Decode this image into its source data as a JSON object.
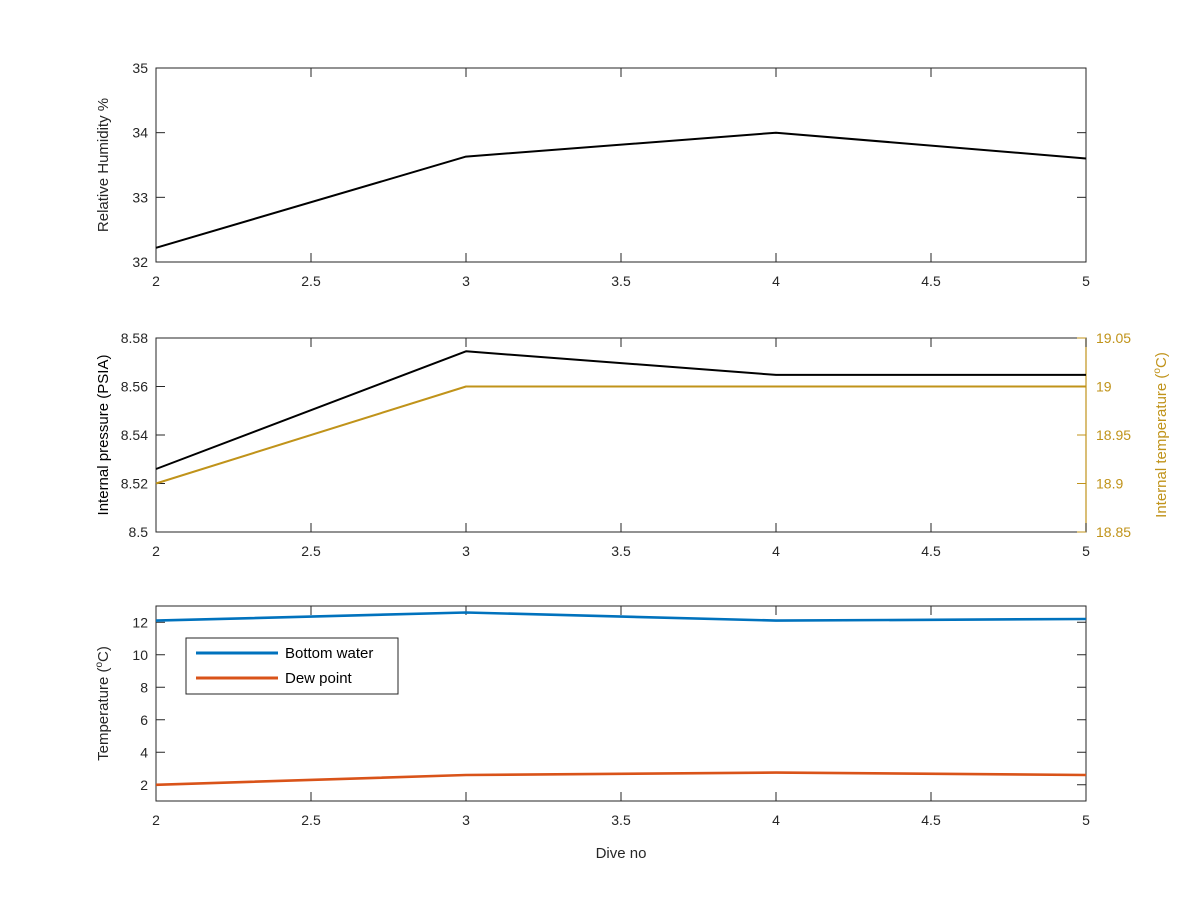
{
  "colors": {
    "black": "#000000",
    "axis": "#262626",
    "gold": "#C0931A",
    "blue": "#0072BD",
    "orange": "#D95319"
  },
  "chart_data": [
    {
      "type": "line",
      "x": [
        2,
        3,
        4,
        5
      ],
      "xlim": [
        2,
        5
      ],
      "xticks": [
        "2",
        "2.5",
        "3",
        "3.5",
        "4",
        "4.5",
        "5"
      ],
      "ylabel": "Relative Humidity %",
      "ylim": [
        32,
        35
      ],
      "yticks": [
        "32",
        "33",
        "34",
        "35"
      ],
      "series": [
        {
          "values": [
            32.22,
            33.63,
            34.0,
            33.6
          ],
          "color": "#000000"
        }
      ]
    },
    {
      "type": "line",
      "x": [
        2,
        3,
        4,
        5
      ],
      "xlim": [
        2,
        5
      ],
      "xticks": [
        "2",
        "2.5",
        "3",
        "3.5",
        "4",
        "4.5",
        "5"
      ],
      "ylabel": "Internal pressure (PSIA)",
      "ylim": [
        8.5,
        8.58
      ],
      "yticks": [
        "8.5",
        "8.52",
        "8.54",
        "8.56",
        "8.58"
      ],
      "y2label_pre": "Internal temperature (",
      "y2label_sup": "o",
      "y2label_post": "C)",
      "y2lim": [
        18.85,
        19.05
      ],
      "y2ticks": [
        "18.85",
        "18.9",
        "18.95",
        "19",
        "19.05"
      ],
      "series": [
        {
          "values": [
            8.526,
            8.5745,
            8.5648,
            8.5648
          ],
          "axis": "left",
          "color": "#000000"
        },
        {
          "values": [
            18.9,
            19.0,
            19.0,
            19.0
          ],
          "axis": "right",
          "color": "#C0931A"
        }
      ]
    },
    {
      "type": "line",
      "x": [
        2,
        3,
        4,
        5
      ],
      "xlim": [
        2,
        5
      ],
      "xticks": [
        "2",
        "2.5",
        "3",
        "3.5",
        "4",
        "4.5",
        "5"
      ],
      "xlabel": "Dive no",
      "ylabel_pre": "Temperature (",
      "ylabel_sup": "o",
      "ylabel_post": "C)",
      "ylim": [
        1,
        13
      ],
      "yticks": [
        "2",
        "4",
        "6",
        "8",
        "10",
        "12"
      ],
      "legend": "top-left",
      "series": [
        {
          "name": "Bottom water",
          "values": [
            12.1,
            12.6,
            12.1,
            12.2
          ],
          "color": "#0072BD"
        },
        {
          "name": "Dew point",
          "values": [
            2.0,
            2.6,
            2.75,
            2.6
          ],
          "color": "#D95319"
        }
      ]
    }
  ]
}
